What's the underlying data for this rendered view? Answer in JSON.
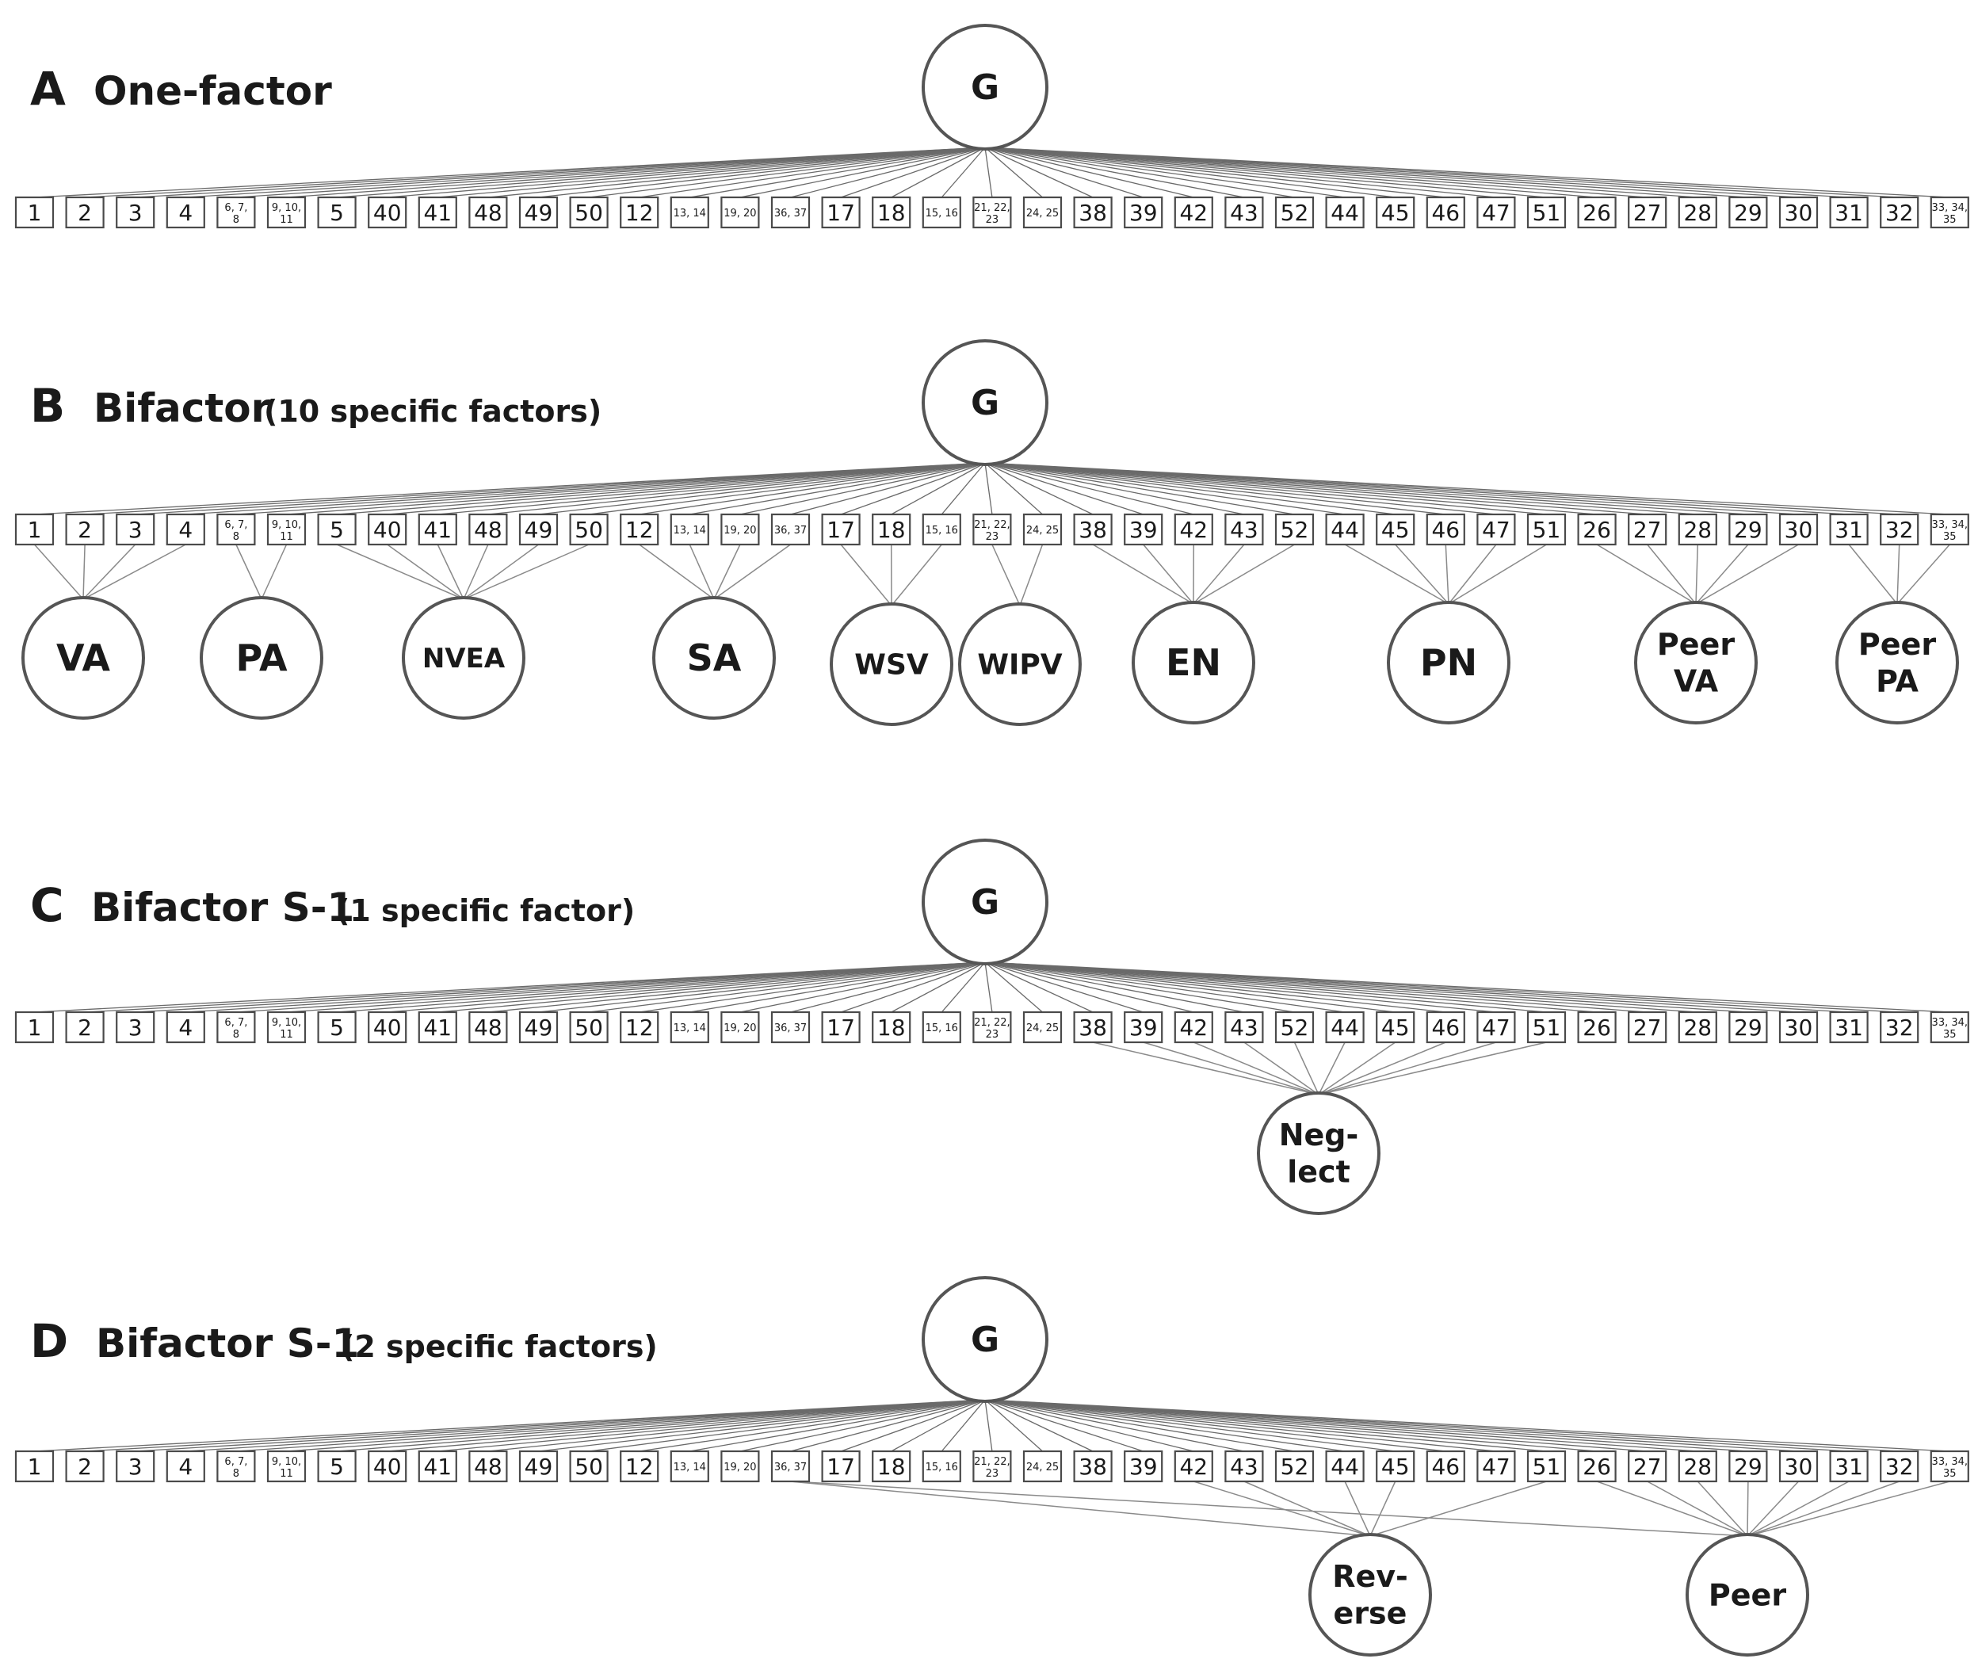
{
  "items": [
    "1",
    "2",
    "3",
    "4",
    "6, 7, 8",
    "9, 10, 11",
    "5",
    "40",
    "41",
    "48",
    "49",
    "50",
    "12",
    "13, 14",
    "19, 20",
    "36, 37",
    "17",
    "18",
    "15, 16",
    "21, 22, 23",
    "24, 25",
    "38",
    "39",
    "42",
    "43",
    "52",
    "44",
    "45",
    "46",
    "47",
    "51",
    "26",
    "27",
    "28",
    "29",
    "30",
    "31",
    "32",
    "33, 34, 35"
  ],
  "panels": [
    {
      "letter": "A",
      "title": "One-factor",
      "subtitle": "",
      "general_factor": "G",
      "specific_factors": []
    },
    {
      "letter": "B",
      "title": "Bifactor",
      "subtitle": "(10 specific factors)",
      "general_factor": "G",
      "specific_factors": [
        {
          "label": [
            "VA"
          ],
          "indicators": [
            "1",
            "2",
            "3",
            "4"
          ]
        },
        {
          "label": [
            "PA"
          ],
          "indicators": [
            "6, 7, 8",
            "9, 10, 11"
          ]
        },
        {
          "label": [
            "NVEA"
          ],
          "indicators": [
            "5",
            "40",
            "41",
            "48",
            "49",
            "50"
          ]
        },
        {
          "label": [
            "SA"
          ],
          "indicators": [
            "12",
            "13, 14",
            "19, 20",
            "36, 37"
          ]
        },
        {
          "label": [
            "WSV"
          ],
          "indicators": [
            "17",
            "18",
            "15, 16"
          ]
        },
        {
          "label": [
            "WIPV"
          ],
          "indicators": [
            "21, 22, 23",
            "24, 25"
          ]
        },
        {
          "label": [
            "EN"
          ],
          "indicators": [
            "38",
            "39",
            "42",
            "43",
            "52"
          ]
        },
        {
          "label": [
            "PN"
          ],
          "indicators": [
            "44",
            "45",
            "46",
            "47",
            "51"
          ]
        },
        {
          "label": [
            "Peer",
            "VA"
          ],
          "indicators": [
            "26",
            "27",
            "28",
            "29",
            "30"
          ]
        },
        {
          "label": [
            "Peer",
            "PA"
          ],
          "indicators": [
            "31",
            "32",
            "33, 34, 35"
          ]
        }
      ]
    },
    {
      "letter": "C",
      "title": "Bifactor S-1",
      "subtitle": "(1 specific factor)",
      "general_factor": "G",
      "specific_factors": [
        {
          "label": [
            "Neg-",
            "lect"
          ],
          "indicators": [
            "38",
            "39",
            "42",
            "43",
            "52",
            "44",
            "45",
            "46",
            "47",
            "51"
          ]
        }
      ]
    },
    {
      "letter": "D",
      "title": "Bifactor S-1",
      "subtitle": "(2 specific factors)",
      "general_factor": "G",
      "specific_factors": [
        {
          "label": [
            "Rev-",
            "erse"
          ],
          "indicators": [
            "36, 37",
            "42",
            "43",
            "44",
            "45",
            "51"
          ]
        },
        {
          "label": [
            "Peer"
          ],
          "indicators": [
            "36, 37",
            "26",
            "27",
            "28",
            "29",
            "30",
            "31",
            "32",
            "33, 34, 35"
          ]
        }
      ]
    }
  ]
}
